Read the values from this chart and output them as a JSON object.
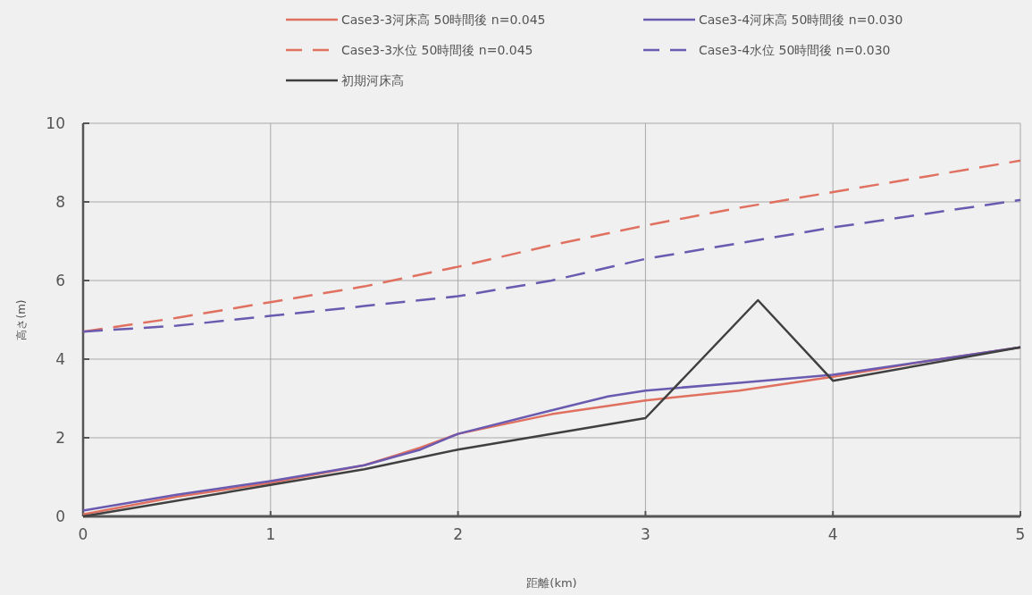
{
  "chart_data": {
    "type": "line",
    "xlabel": "距離(km)",
    "ylabel": "高さ(m)",
    "xlim": [
      0,
      5
    ],
    "ylim": [
      0,
      10
    ],
    "xticks": [
      0,
      1,
      2,
      3,
      4,
      5
    ],
    "yticks": [
      0,
      2,
      4,
      6,
      8,
      10
    ],
    "grid": true,
    "legend": "top",
    "series": [
      {
        "name": "Case3-3河床高 50時間後 n=0.045",
        "color": "#e07060",
        "line_style": "solid",
        "x": [
          0,
          0.5,
          1,
          1.5,
          1.8,
          2,
          2.5,
          3,
          3.5,
          4,
          4.5,
          5
        ],
        "values": [
          0.05,
          0.5,
          0.85,
          1.3,
          1.75,
          2.1,
          2.6,
          2.95,
          3.2,
          3.55,
          3.95,
          4.3
        ]
      },
      {
        "name": "Case3-4河床高 50時間後 n=0.030",
        "color": "#6a5ab0",
        "line_style": "solid",
        "x": [
          0,
          0.5,
          1,
          1.5,
          1.8,
          2,
          2.5,
          2.8,
          3,
          3.5,
          4,
          4.5,
          5
        ],
        "values": [
          0.15,
          0.55,
          0.9,
          1.3,
          1.7,
          2.1,
          2.7,
          3.05,
          3.2,
          3.4,
          3.6,
          3.95,
          4.3
        ]
      },
      {
        "name": "Case3-3水位 50時間後 n=0.045",
        "color": "#e07060",
        "line_style": "dashed",
        "x": [
          0,
          0.5,
          1,
          1.5,
          2,
          2.5,
          3,
          3.5,
          4,
          4.5,
          5
        ],
        "values": [
          4.7,
          5.05,
          5.45,
          5.85,
          6.35,
          6.9,
          7.4,
          7.85,
          8.25,
          8.65,
          9.05
        ]
      },
      {
        "name": "Case3-4水位 50時間後 n=0.030",
        "color": "#6a5ab0",
        "line_style": "dashed",
        "x": [
          0,
          0.5,
          1,
          1.5,
          2,
          2.5,
          3,
          3.5,
          4,
          4.5,
          5
        ],
        "values": [
          4.7,
          4.85,
          5.1,
          5.35,
          5.6,
          6.0,
          6.55,
          6.95,
          7.35,
          7.7,
          8.05
        ]
      },
      {
        "name": "初期河床高",
        "color": "#404040",
        "line_style": "solid",
        "x": [
          0,
          1,
          1.5,
          2,
          3,
          3.6,
          4,
          5
        ],
        "values": [
          0,
          0.8,
          1.2,
          1.7,
          2.5,
          5.5,
          3.45,
          4.3
        ]
      }
    ]
  }
}
